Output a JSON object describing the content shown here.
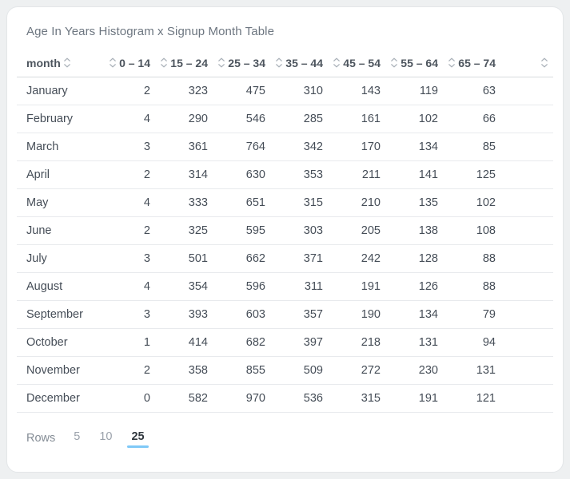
{
  "card": {
    "title": "Age In Years Histogram x Signup Month Table"
  },
  "table": {
    "month_header": "month",
    "age_bucket_headers": [
      "0 – 14",
      "15 – 24",
      "25 – 34",
      "35 – 44",
      "45 – 54",
      "55 – 64",
      "65 – 74"
    ],
    "rows": [
      {
        "month": "January",
        "values": [
          2,
          323,
          475,
          310,
          143,
          119,
          63
        ]
      },
      {
        "month": "February",
        "values": [
          4,
          290,
          546,
          285,
          161,
          102,
          66
        ]
      },
      {
        "month": "March",
        "values": [
          3,
          361,
          764,
          342,
          170,
          134,
          85
        ]
      },
      {
        "month": "April",
        "values": [
          2,
          314,
          630,
          353,
          211,
          141,
          125
        ]
      },
      {
        "month": "May",
        "values": [
          4,
          333,
          651,
          315,
          210,
          135,
          102
        ]
      },
      {
        "month": "June",
        "values": [
          2,
          325,
          595,
          303,
          205,
          138,
          108
        ]
      },
      {
        "month": "July",
        "values": [
          3,
          501,
          662,
          371,
          242,
          128,
          88
        ]
      },
      {
        "month": "August",
        "values": [
          4,
          354,
          596,
          311,
          191,
          126,
          88
        ]
      },
      {
        "month": "September",
        "values": [
          3,
          393,
          603,
          357,
          190,
          134,
          79
        ]
      },
      {
        "month": "October",
        "values": [
          1,
          414,
          682,
          397,
          218,
          131,
          94
        ]
      },
      {
        "month": "November",
        "values": [
          2,
          358,
          855,
          509,
          272,
          230,
          131
        ]
      },
      {
        "month": "December",
        "values": [
          0,
          582,
          970,
          536,
          315,
          191,
          121
        ]
      }
    ]
  },
  "pagination": {
    "label": "Rows",
    "options": [
      "5",
      "10",
      "25"
    ],
    "selected": "25"
  },
  "colors": {
    "accent_underline": "#7fc9f7",
    "card_background": "#ffffff",
    "page_background": "#eef0f1",
    "title_text": "#6d7680",
    "header_text": "#4d555e",
    "cell_text": "#454d57"
  }
}
